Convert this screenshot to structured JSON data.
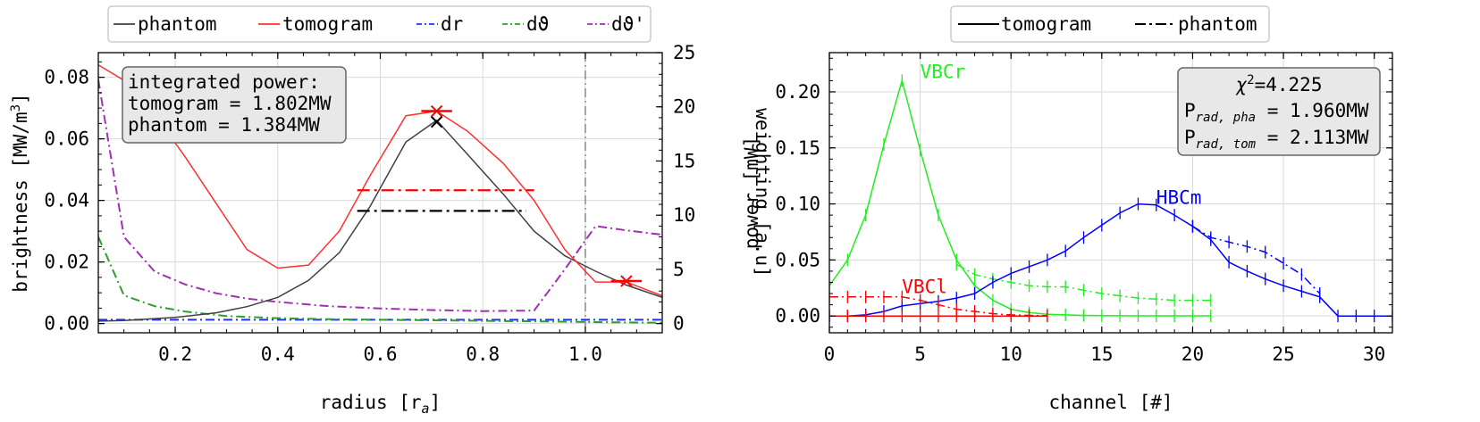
{
  "chart_data": [
    {
      "type": "line",
      "xlabel": "radius [r",
      "xlabel_sub": "a",
      "xlabel_end": "]",
      "ylabel_left": "brightness [MW/m",
      "ylabel_left_sup": "3",
      "ylabel_left_end": "]",
      "ylabel_right": "weighting [a.u]",
      "xlim": [
        0.05,
        1.15
      ],
      "ylim_left": [
        -0.003,
        0.088
      ],
      "ylim_right": [
        -0.85,
        25
      ],
      "grid": true,
      "x_ticks": [
        "0.2",
        "0.4",
        "0.6",
        "0.8",
        "1.0"
      ],
      "x_tick_values": [
        0.2,
        0.4,
        0.6,
        0.8,
        1.0
      ],
      "y_left_ticks": [
        "0.00",
        "0.02",
        "0.04",
        "0.06",
        "0.08"
      ],
      "y_left_tick_values": [
        0,
        0.02,
        0.04,
        0.06,
        0.08
      ],
      "y_right_ticks": [
        "0",
        "5",
        "10",
        "15",
        "20",
        "25"
      ],
      "y_right_tick_values": [
        0,
        5,
        10,
        15,
        20,
        25
      ],
      "legend": {
        "placement": "top",
        "entries": [
          {
            "label": "phantom",
            "color": "#404040",
            "style": "solid"
          },
          {
            "label": "tomogram",
            "color": "#ff3030",
            "style": "solid"
          },
          {
            "label": "dr",
            "color": "#2030ff",
            "style": "dashdot"
          },
          {
            "label": "dϑ",
            "color": "#2ca02c",
            "style": "dashdot"
          },
          {
            "label": "dϑ'",
            "color": "#a030b0",
            "style": "dashdot"
          }
        ]
      },
      "annotation_box": {
        "lines": [
          "integrated power:",
          "tomogram = 1.802MW",
          "phantom = 1.384MW"
        ]
      },
      "series": [
        {
          "name": "phantom",
          "axis": "left",
          "color": "#404040",
          "style": "solid",
          "x": [
            0.05,
            0.1,
            0.15,
            0.2,
            0.28,
            0.34,
            0.4,
            0.46,
            0.52,
            0.58,
            0.65,
            0.71,
            0.77,
            0.84,
            0.9,
            0.96,
            1.02,
            1.08,
            1.15
          ],
          "y": [
            0.0008,
            0.001,
            0.0015,
            0.002,
            0.0035,
            0.0055,
            0.0085,
            0.014,
            0.023,
            0.038,
            0.059,
            0.066,
            0.055,
            0.042,
            0.03,
            0.022,
            0.017,
            0.0125,
            0.0085
          ]
        },
        {
          "name": "tomogram",
          "axis": "left",
          "color": "#ff3030",
          "style": "solid",
          "x": [
            0.05,
            0.1,
            0.16,
            0.22,
            0.28,
            0.34,
            0.4,
            0.46,
            0.52,
            0.58,
            0.65,
            0.71,
            0.77,
            0.84,
            0.9,
            0.96,
            1.02,
            1.08,
            1.15
          ],
          "y": [
            0.084,
            0.079,
            0.068,
            0.054,
            0.039,
            0.024,
            0.018,
            0.019,
            0.03,
            0.048,
            0.0675,
            0.069,
            0.0625,
            0.052,
            0.04,
            0.024,
            0.0135,
            0.0135,
            0.009
          ]
        },
        {
          "name": "dr",
          "axis": "right",
          "color": "#2030ff",
          "style": "dashdot",
          "x": [
            0.05,
            1.15
          ],
          "y": [
            0.35,
            0.35
          ]
        },
        {
          "name": "dϑ",
          "axis": "right",
          "color": "#2ca02c",
          "style": "dashdot",
          "x": [
            0.05,
            0.1,
            0.16,
            0.22,
            0.3,
            0.4,
            0.5,
            0.6,
            0.7,
            0.8,
            0.9,
            1.0,
            1.05,
            1.1,
            1.15
          ],
          "y": [
            8.0,
            2.6,
            1.6,
            1.1,
            0.7,
            0.5,
            0.4,
            0.35,
            0.3,
            0.25,
            0.2,
            0.15,
            0.12,
            0.1,
            0.08
          ]
        },
        {
          "name": "dϑ'",
          "axis": "right",
          "color": "#a030b0",
          "style": "dashdot",
          "x": [
            0.05,
            0.1,
            0.16,
            0.22,
            0.28,
            0.34,
            0.4,
            0.5,
            0.6,
            0.7,
            0.8,
            0.9,
            0.96,
            1.02,
            1.08,
            1.15
          ],
          "y": [
            22.5,
            8.0,
            4.8,
            3.6,
            2.8,
            2.3,
            2.0,
            1.6,
            1.4,
            1.25,
            1.15,
            1.2,
            5.0,
            9.0,
            8.6,
            8.2
          ]
        }
      ],
      "vline_x": 1.0,
      "hlines": [
        {
          "color": "#ff0000",
          "x": [
            0.555,
            0.9
          ],
          "axis": "right",
          "y": 12.3
        },
        {
          "color": "#000000",
          "x": [
            0.555,
            0.885
          ],
          "axis": "right",
          "y": 10.4
        }
      ],
      "markers": [
        {
          "color": "#ff0000",
          "x": 0.71,
          "y": 0.069,
          "axis": "left",
          "errx": 0.03
        },
        {
          "color": "#000000",
          "x": 0.71,
          "y": 0.0655,
          "axis": "left",
          "errx": 0.0
        },
        {
          "color": "#ff0000",
          "x": 1.08,
          "y": 0.0138,
          "axis": "left",
          "errx": 0.03
        }
      ]
    },
    {
      "type": "line",
      "xlabel": "channel [#]",
      "ylabel": "power [mW]",
      "xlim": [
        0,
        31
      ],
      "ylim": [
        -0.015,
        0.235
      ],
      "grid": true,
      "x_ticks": [
        "0",
        "5",
        "10",
        "15",
        "20",
        "25",
        "30"
      ],
      "x_tick_values": [
        0,
        5,
        10,
        15,
        20,
        25,
        30
      ],
      "y_ticks": [
        "0.00",
        "0.05",
        "0.10",
        "0.15",
        "0.20"
      ],
      "y_tick_values": [
        0,
        0.05,
        0.1,
        0.15,
        0.2
      ],
      "legend": {
        "placement": "top",
        "entries": [
          {
            "label": "tomogram",
            "color": "#000000",
            "style": "solid"
          },
          {
            "label": "phantom",
            "color": "#000000",
            "style": "dashdot"
          }
        ]
      },
      "stats_box": {
        "chi_label": "χ",
        "chi_sup": "2",
        "chi_value": "=4.225",
        "p_pha_main": "P",
        "p_pha_sub": "rad, pha",
        "p_pha_value": " = 1.960MW",
        "p_tom_main": "P",
        "p_tom_sub": "rad, tom",
        "p_tom_value": " = 2.113MW"
      },
      "camera_labels": [
        {
          "text": "VBCr",
          "color": "#22ee22",
          "x": 5.0,
          "y": 0.2125
        },
        {
          "text": "HBCm",
          "color": "#0000ff",
          "x": 18.0,
          "y": 0.1
        },
        {
          "text": "VBCl",
          "color": "#ff0000",
          "x": 4.0,
          "y": 0.0205
        }
      ],
      "series": [
        {
          "name": "VBCr tomogram",
          "color": "#22ee22",
          "style": "solid",
          "x": [
            0,
            1,
            2,
            3,
            4,
            5,
            6,
            7,
            8,
            9,
            10,
            11,
            12,
            13,
            14,
            15,
            16,
            17,
            18,
            19,
            20,
            21
          ],
          "y": [
            0.027,
            0.05,
            0.09,
            0.153,
            0.21,
            0.148,
            0.09,
            0.05,
            0.027,
            0.014,
            0.006,
            0.003,
            0.0015,
            0.001,
            0.0005,
            0.0003,
            0.0002,
            0.0001,
            0.0001,
            0.0001,
            0.0001,
            0.0001
          ]
        },
        {
          "name": "VBCr phantom",
          "color": "#22ee22",
          "style": "dashdot",
          "x": [
            7,
            8,
            9,
            10,
            11,
            12,
            13,
            14,
            15,
            16,
            17,
            18,
            19,
            20,
            21
          ],
          "y": [
            0.046,
            0.037,
            0.033,
            0.03,
            0.027,
            0.026,
            0.026,
            0.023,
            0.02,
            0.018,
            0.016,
            0.015,
            0.014,
            0.014,
            0.014
          ]
        },
        {
          "name": "HBCm tomogram",
          "color": "#0000ff",
          "style": "solid",
          "x": [
            0,
            1,
            2,
            3,
            4,
            5,
            6,
            7,
            8,
            9,
            10,
            11,
            12,
            13,
            14,
            15,
            16,
            17,
            18,
            19,
            20,
            21,
            22,
            23,
            24,
            25,
            26,
            27,
            28,
            29,
            30,
            31
          ],
          "y": [
            0.0,
            0.0,
            0.001,
            0.004,
            0.009,
            0.011,
            0.013,
            0.016,
            0.02,
            0.03,
            0.038,
            0.044,
            0.05,
            0.058,
            0.07,
            0.081,
            0.092,
            0.1,
            0.099,
            0.09,
            0.08,
            0.068,
            0.048,
            0.04,
            0.033,
            0.027,
            0.022,
            0.017,
            0.0,
            0.0,
            0.0,
            0.0
          ]
        },
        {
          "name": "HBCm phantom",
          "color": "#0000ff",
          "style": "dashdot",
          "x": [
            20,
            21,
            22,
            23,
            24,
            25,
            26,
            27
          ],
          "y": [
            0.08,
            0.07,
            0.066,
            0.062,
            0.057,
            0.047,
            0.037,
            0.02
          ]
        },
        {
          "name": "VBCl tomogram",
          "color": "#ff0000",
          "style": "solid",
          "x": [
            0,
            1,
            2,
            3,
            4,
            5,
            6,
            7,
            8,
            9,
            10,
            11,
            12
          ],
          "y": [
            0.0,
            0.0,
            0.0,
            0.0,
            0.0,
            0.0,
            0.0,
            0.0,
            0.0,
            0.0,
            0.0,
            0.0,
            0.0
          ]
        },
        {
          "name": "VBCl phantom",
          "color": "#ff0000",
          "style": "dashdot",
          "x": [
            0,
            1,
            2,
            3,
            4,
            5,
            6,
            7,
            8,
            9,
            10,
            11,
            12
          ],
          "y": [
            0.017,
            0.017,
            0.017,
            0.017,
            0.017,
            0.014,
            0.01,
            0.006,
            0.004,
            0.002,
            0.001,
            0.0005,
            0.0003
          ]
        }
      ]
    }
  ]
}
